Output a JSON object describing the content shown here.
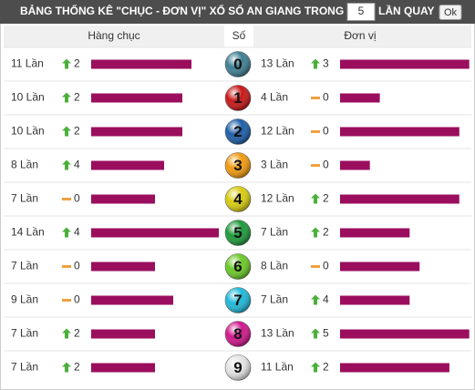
{
  "header": {
    "title": "BẢNG THỐNG KÊ \"CHỤC - ĐƠN VỊ\" XỔ SỐ AN GIANG TRONG",
    "input_value": "5",
    "suffix": "LẦN QUAY",
    "button": "Ok"
  },
  "columns": {
    "tens": "Hàng chục",
    "digit": "Số",
    "units": "Đơn vị"
  },
  "rows": [
    {
      "digit": "0",
      "color": "#3f7f92",
      "tens": {
        "count": {
          "value": 11,
          "label": "11 Lần"
        },
        "trend": "up",
        "change": 2
      },
      "units": {
        "count": {
          "value": 13,
          "label": "13 Lần"
        },
        "trend": "up",
        "change": 3
      }
    },
    {
      "digit": "1",
      "color": "#c81818",
      "tens": {
        "count": {
          "value": 10,
          "label": "10 Lần"
        },
        "trend": "up",
        "change": 2
      },
      "units": {
        "count": {
          "value": 4,
          "label": "4 Lần"
        },
        "trend": "flat",
        "change": 0
      }
    },
    {
      "digit": "2",
      "color": "#1f5fa8",
      "tens": {
        "count": {
          "value": 10,
          "label": "10 Lần"
        },
        "trend": "up",
        "change": 2
      },
      "units": {
        "count": {
          "value": 12,
          "label": "12 Lần"
        },
        "trend": "flat",
        "change": 0
      }
    },
    {
      "digit": "3",
      "color": "#f09a10",
      "tens": {
        "count": {
          "value": 8,
          "label": "8 Lần"
        },
        "trend": "up",
        "change": 4
      },
      "units": {
        "count": {
          "value": 3,
          "label": "3 Lần"
        },
        "trend": "flat",
        "change": 0
      }
    },
    {
      "digit": "4",
      "color": "#d8cc10",
      "tens": {
        "count": {
          "value": 7,
          "label": "7 Lần"
        },
        "trend": "flat",
        "change": 0
      },
      "units": {
        "count": {
          "value": 12,
          "label": "12 Lần"
        },
        "trend": "up",
        "change": 2
      }
    },
    {
      "digit": "5",
      "color": "#1e9a3c",
      "tens": {
        "count": {
          "value": 14,
          "label": "14 Lần"
        },
        "trend": "up",
        "change": 4
      },
      "units": {
        "count": {
          "value": 7,
          "label": "7 Lần"
        },
        "trend": "up",
        "change": 2
      }
    },
    {
      "digit": "6",
      "color": "#6cc828",
      "tens": {
        "count": {
          "value": 7,
          "label": "7 Lần"
        },
        "trend": "flat",
        "change": 0
      },
      "units": {
        "count": {
          "value": 8,
          "label": "8 Lần"
        },
        "trend": "flat",
        "change": 0
      }
    },
    {
      "digit": "7",
      "color": "#20b8d8",
      "tens": {
        "count": {
          "value": 9,
          "label": "9 Lần"
        },
        "trend": "flat",
        "change": 0
      },
      "units": {
        "count": {
          "value": 7,
          "label": "7 Lần"
        },
        "trend": "up",
        "change": 4
      }
    },
    {
      "digit": "8",
      "color": "#d0188c",
      "tens": {
        "count": {
          "value": 7,
          "label": "7 Lần"
        },
        "trend": "up",
        "change": 2
      },
      "units": {
        "count": {
          "value": 13,
          "label": "13 Lần"
        },
        "trend": "up",
        "change": 5
      }
    },
    {
      "digit": "9",
      "color": "#e4e4e4",
      "tens": {
        "count": {
          "value": 7,
          "label": "7 Lần"
        },
        "trend": "up",
        "change": 2
      },
      "units": {
        "count": {
          "value": 11,
          "label": "11 Lần"
        },
        "trend": "up",
        "change": 2
      }
    }
  ]
}
